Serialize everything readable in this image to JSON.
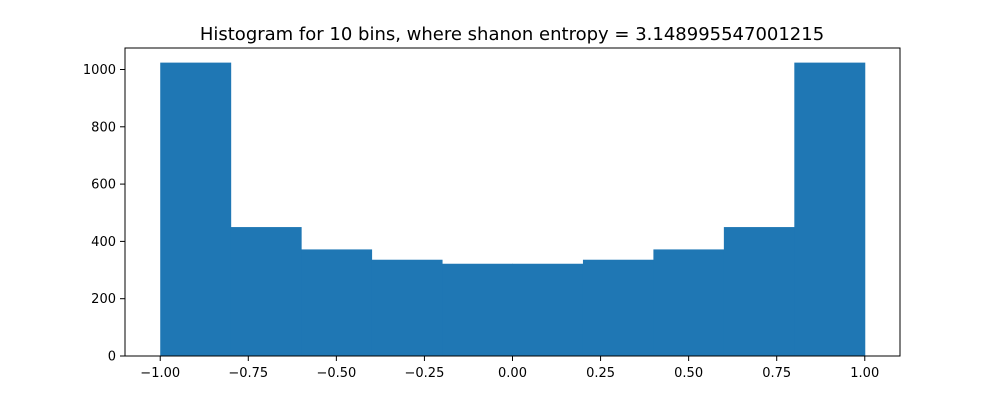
{
  "chart_data": {
    "type": "bar",
    "title": "Histogram for 10 bins, where shanon entropy = 3.148995547001215",
    "xlabel": "",
    "ylabel": "",
    "bin_edges": [
      -1.0,
      -0.8,
      -0.6,
      -0.4,
      -0.2,
      0.0,
      0.2,
      0.4,
      0.6,
      0.8,
      1.0
    ],
    "values": [
      1024,
      450,
      372,
      336,
      322,
      322,
      336,
      372,
      450,
      1024
    ],
    "xlim": [
      -1.1,
      1.1
    ],
    "ylim": [
      0,
      1075
    ],
    "x_ticks": [
      -1.0,
      -0.75,
      -0.5,
      -0.25,
      0.0,
      0.25,
      0.5,
      0.75,
      1.0
    ],
    "x_tick_labels": [
      "−1.00",
      "−0.75",
      "−0.50",
      "−0.25",
      "0.00",
      "0.25",
      "0.50",
      "0.75",
      "1.00"
    ],
    "y_ticks": [
      0,
      200,
      400,
      600,
      800,
      1000
    ],
    "y_tick_labels": [
      "0",
      "200",
      "400",
      "600",
      "800",
      "1000"
    ],
    "bar_color": "#1f77b4",
    "grid": false,
    "legend": "none"
  }
}
